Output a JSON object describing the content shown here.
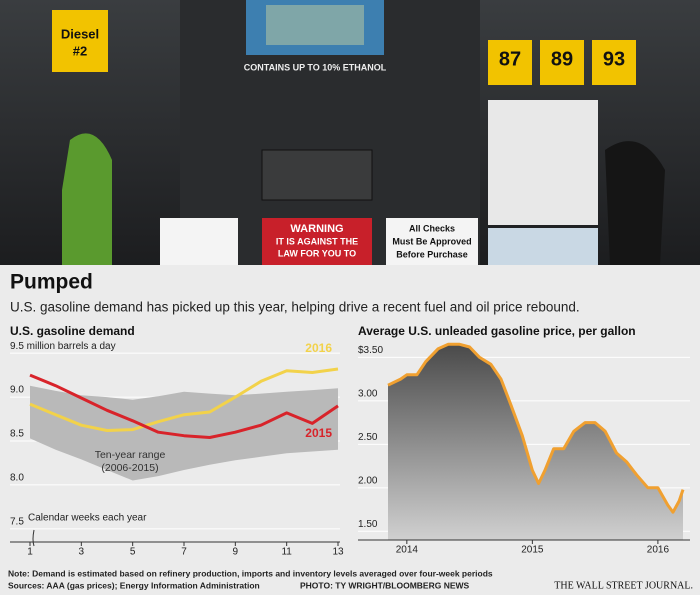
{
  "photo": {
    "signs": [
      "Diesel",
      "#2",
      "87",
      "89",
      "93",
      "CONTAINS UP TO 10% ETHANOL",
      "WARNING",
      "IT IS AGAINST THE",
      "LAW FOR YOU TO",
      "All Checks",
      "Must Be Approved",
      "Before Purchase"
    ]
  },
  "header": {
    "title": "Pumped",
    "subtitle": "U.S. gasoline demand has picked up this year, helping drive a recent fuel and oil price rebound."
  },
  "chart_data": [
    {
      "type": "line",
      "title": "U.S. gasoline demand",
      "x": [
        1,
        2,
        3,
        4,
        5,
        6,
        7,
        8,
        9,
        10,
        11,
        12,
        13
      ],
      "xlim": [
        1,
        13
      ],
      "xticks": [
        1,
        3,
        5,
        7,
        9,
        11,
        13
      ],
      "ylim": [
        7.35,
        9.65
      ],
      "yticks": [
        7.5,
        {
          "value": 8,
          "label": "8.0"
        },
        8.5,
        {
          "value": 9,
          "label": "9.0"
        },
        {
          "value": 9.5,
          "label": "9.5 million barrels a day"
        }
      ],
      "grid": true,
      "band": {
        "name": "Ten-year range",
        "period": "(2006-2015)",
        "color": "#b9b9b9",
        "upper": [
          9.13,
          9.07,
          9.02,
          9.0,
          8.97,
          9.01,
          9.06,
          9.04,
          9.02,
          9.04,
          9.06,
          9.08,
          9.1
        ],
        "lower": [
          8.53,
          8.4,
          8.29,
          8.17,
          8.05,
          8.1,
          8.17,
          8.23,
          8.28,
          8.32,
          8.36,
          8.38,
          8.4
        ]
      },
      "series": [
        {
          "name": "2016",
          "color": "#f2d24a",
          "values": [
            8.92,
            8.8,
            8.68,
            8.62,
            8.63,
            8.72,
            8.8,
            8.83,
            9.0,
            9.18,
            9.3,
            9.28,
            9.32
          ]
        },
        {
          "name": "2015",
          "color": "#d8232a",
          "values": [
            9.25,
            9.13,
            8.99,
            8.85,
            8.73,
            8.6,
            8.56,
            8.54,
            8.6,
            8.68,
            8.82,
            8.7,
            8.9
          ]
        }
      ],
      "annotation": "Calendar weeks each year"
    },
    {
      "type": "area",
      "title": "Average U.S. unleaded gasoline price, per gallon",
      "x": [
        2013.85,
        2013.95,
        2014.0,
        2014.08,
        2014.15,
        2014.25,
        2014.33,
        2014.42,
        2014.5,
        2014.58,
        2014.67,
        2014.75,
        2014.83,
        2014.92,
        2015.0,
        2015.05,
        2015.1,
        2015.17,
        2015.25,
        2015.33,
        2015.42,
        2015.5,
        2015.58,
        2015.67,
        2015.75,
        2015.83,
        2015.92,
        2016.0,
        2016.08,
        2016.12,
        2016.17,
        2016.2
      ],
      "xlim": [
        2013.85,
        2016.2
      ],
      "xticks": [
        2014,
        2015,
        2016
      ],
      "ylim": [
        1.4,
        3.7
      ],
      "yticks": [
        {
          "value": 1.5,
          "label": "1.50"
        },
        {
          "value": 2,
          "label": "2.00"
        },
        {
          "value": 2.5,
          "label": "2.50"
        },
        {
          "value": 3,
          "label": "3.00"
        },
        {
          "value": 3.5,
          "label": "$3.50"
        }
      ],
      "grid": true,
      "series": [
        {
          "name": "Average U.S. unleaded gasoline price",
          "color": "#f0a030",
          "values": [
            3.18,
            3.25,
            3.3,
            3.3,
            3.45,
            3.6,
            3.65,
            3.65,
            3.62,
            3.5,
            3.42,
            3.25,
            2.95,
            2.6,
            2.2,
            2.05,
            2.2,
            2.45,
            2.45,
            2.65,
            2.75,
            2.75,
            2.65,
            2.4,
            2.3,
            2.15,
            2.0,
            2.0,
            1.8,
            1.72,
            1.85,
            1.98
          ]
        }
      ]
    }
  ],
  "footer": {
    "note": "Note: Demand is estimated based on refinery production, imports and inventory levels averaged over four-week periods",
    "sources": "Sources: AAA (gas prices); Energy Information Administration",
    "credit": "PHOTO: TY WRIGHT/BLOOMBERG NEWS",
    "publisher": "THE WALL STREET JOURNAL."
  }
}
